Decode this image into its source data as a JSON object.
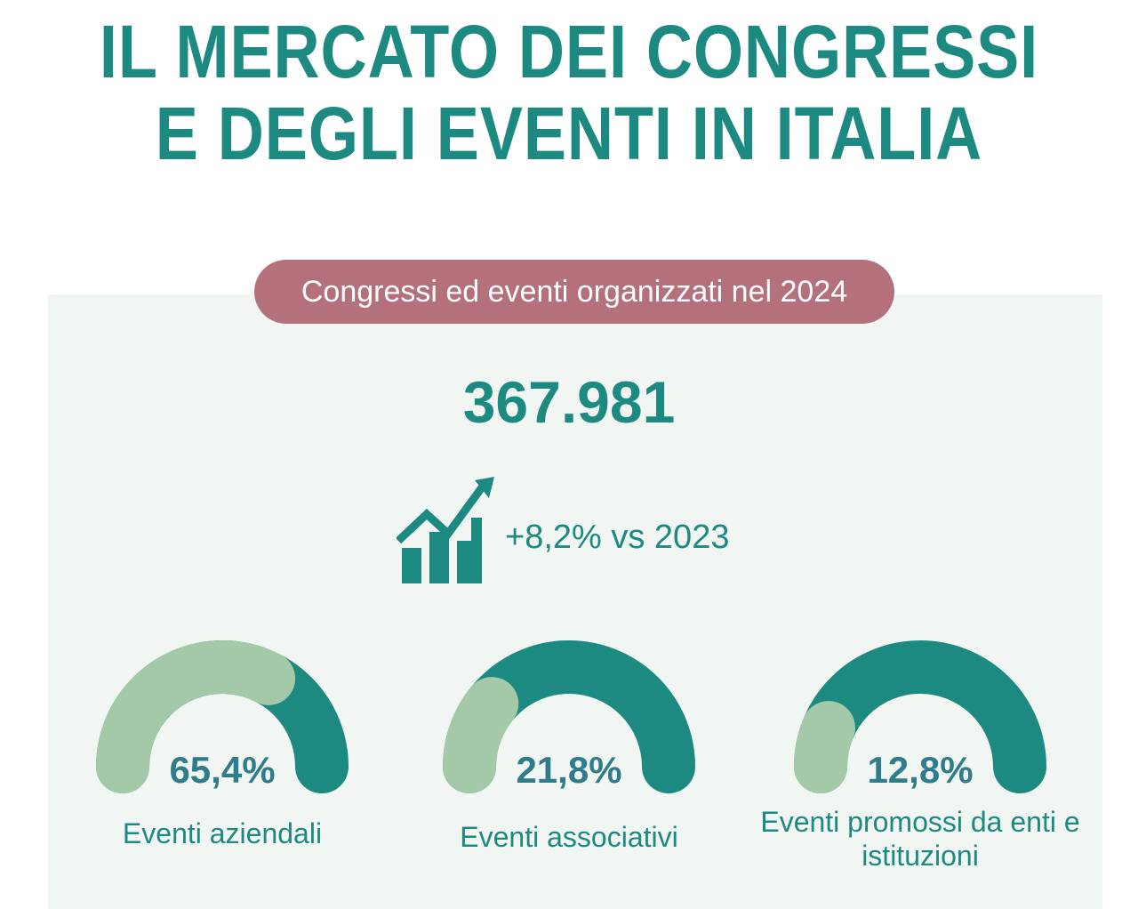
{
  "header": {
    "title_line1": "IL MERCATO DEI CONGRESSI",
    "title_line2": "E DEGLI EVENTI IN ITALIA"
  },
  "summary": {
    "pill_label": "Congressi ed eventi organizzati nel 2024",
    "total": "367.981",
    "growth": "+8,2% vs 2023",
    "growth_icon": "bar-chart-growth-icon"
  },
  "colors": {
    "teal": "#1c8a80",
    "light_green": "#a3c9a8",
    "pill": "#b4717b",
    "panel": "#f2f6f3"
  },
  "chart_data": {
    "type": "gauge",
    "series": [
      {
        "name": "Eventi aziendali",
        "value": 65.4,
        "display": "65,4%"
      },
      {
        "name": "Eventi associativi",
        "value": 21.8,
        "display": "21,8%"
      },
      {
        "name": "Eventi promossi da enti e istituzioni",
        "value": 12.8,
        "display": "12,8%"
      }
    ]
  }
}
